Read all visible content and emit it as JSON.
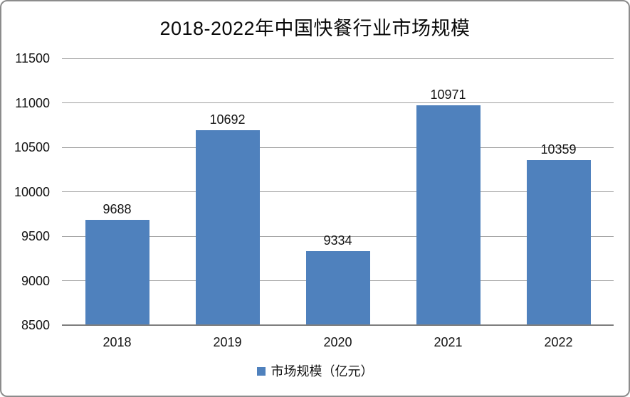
{
  "title": "2018-2022年中国快餐行业市场规模",
  "legend": {
    "label": "市场规模（亿元）",
    "marker_color": "#4f81bd"
  },
  "chart_data": {
    "type": "bar",
    "title": "2018-2022年中国快餐行业市场规模",
    "categories": [
      "2018",
      "2019",
      "2020",
      "2021",
      "2022"
    ],
    "values": [
      9688,
      10692,
      9334,
      10971,
      10359
    ],
    "series": [
      {
        "name": "市场规模（亿元）",
        "values": [
          9688,
          10692,
          9334,
          10971,
          10359
        ]
      }
    ],
    "xlabel": "",
    "ylabel": "",
    "ylim": [
      8500,
      11500
    ],
    "yticks": [
      8500,
      9000,
      9500,
      10000,
      10500,
      11000,
      11500
    ],
    "grid": true,
    "data_labels": true,
    "legend_position": "bottom",
    "bar_color": "#4f81bd",
    "gridline_color": "#a0a0a0",
    "axis_line_color": "#7f7f7f",
    "text_color": "#141414"
  }
}
